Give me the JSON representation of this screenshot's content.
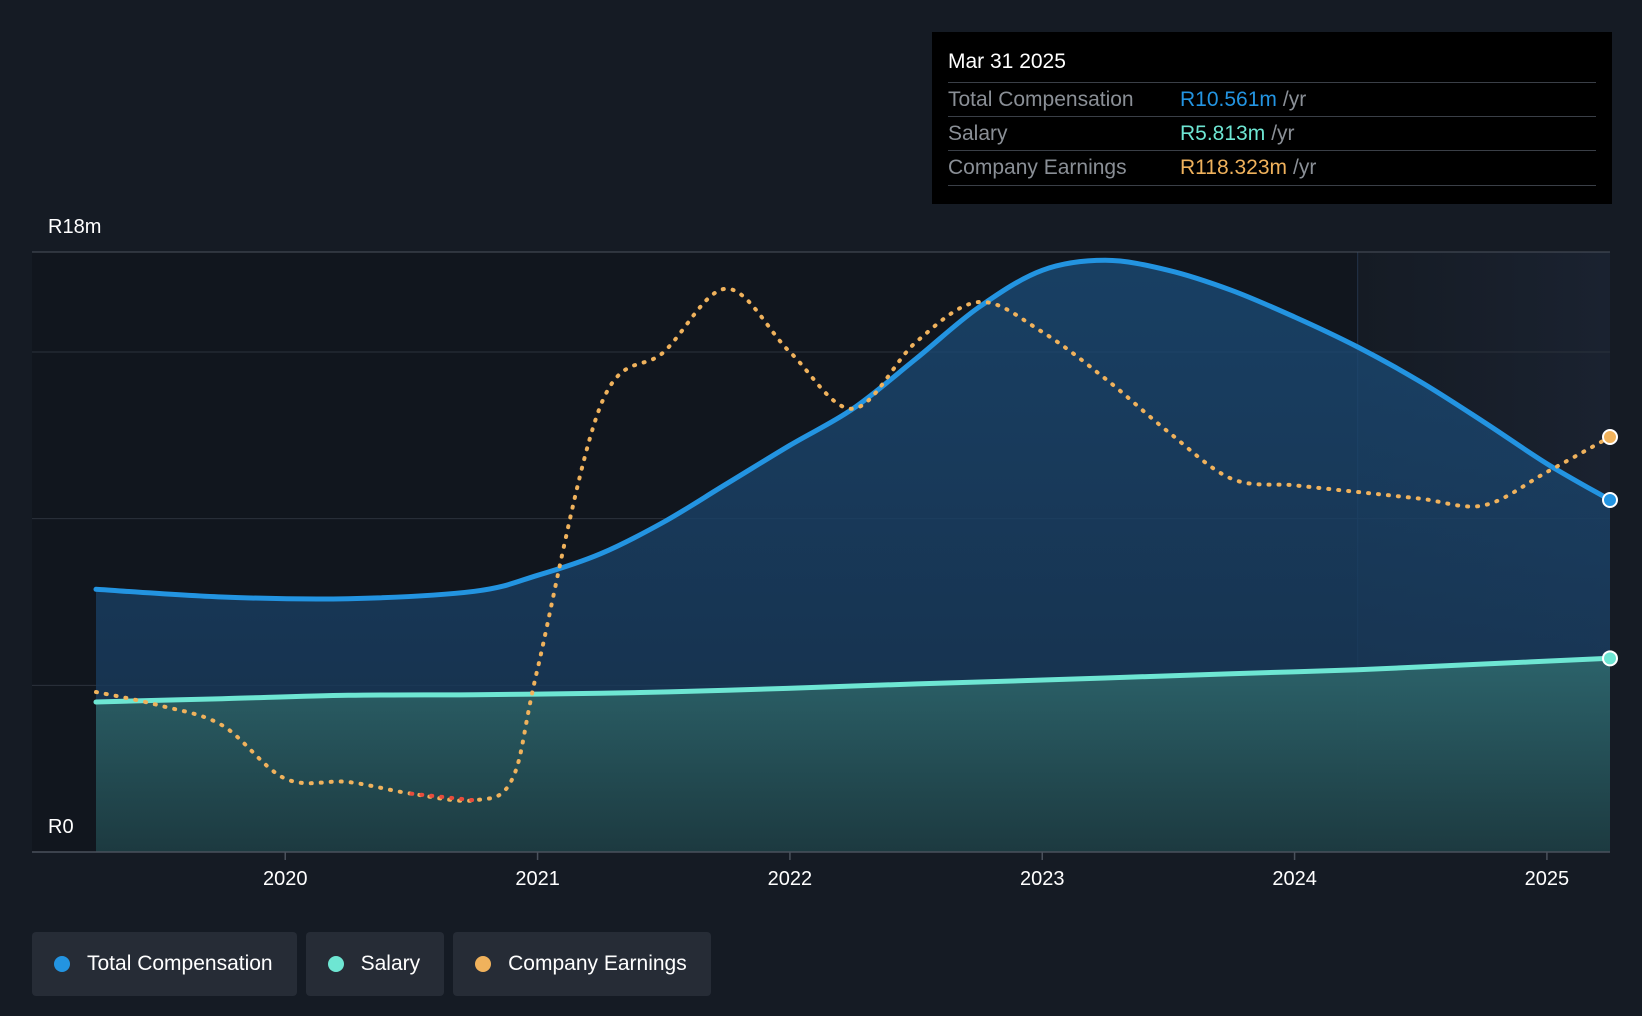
{
  "tooltip": {
    "date": "Mar 31 2025",
    "rows": [
      {
        "label": "Total Compensation",
        "value": "R10.561m",
        "unit": "/yr",
        "color": "#2394e1"
      },
      {
        "label": "Salary",
        "value": "R5.813m",
        "unit": "/yr",
        "color": "#6ee6d3"
      },
      {
        "label": "Company Earnings",
        "value": "R118.323m",
        "unit": "/yr",
        "color": "#f0b25c"
      }
    ]
  },
  "legend": [
    {
      "label": "Total Compensation",
      "color": "#2394e1"
    },
    {
      "label": "Salary",
      "color": "#6ee6d3"
    },
    {
      "label": "Company Earnings",
      "color": "#f0b25c"
    }
  ],
  "chart_data": {
    "type": "area",
    "title": "",
    "xlabel": "",
    "ylabel": "",
    "y_top_label": "R18m",
    "y_bottom_label": "R0",
    "ylim": [
      0,
      18
    ],
    "xlim": [
      2019.25,
      2025.25
    ],
    "x_ticks": [
      2020,
      2021,
      2022,
      2023,
      2024,
      2025
    ],
    "x_tick_labels": [
      "2020",
      "2021",
      "2022",
      "2023",
      "2024",
      "2025"
    ],
    "forecast_start": 2024.25,
    "series": [
      {
        "name": "Total Compensation",
        "unit": "R m",
        "color": "#2394e1",
        "style": "solid-area",
        "x": [
          2019.25,
          2019.75,
          2020.25,
          2020.75,
          2021.0,
          2021.25,
          2021.5,
          2021.75,
          2022.0,
          2022.25,
          2022.5,
          2022.75,
          2023.0,
          2023.25,
          2023.5,
          2023.75,
          2024.0,
          2024.25,
          2024.5,
          2024.75,
          2025.0,
          2025.25
        ],
        "values": [
          7.88,
          7.65,
          7.6,
          7.82,
          8.3,
          8.95,
          9.9,
          11.05,
          12.2,
          13.3,
          14.8,
          16.35,
          17.45,
          17.75,
          17.45,
          16.85,
          16.05,
          15.15,
          14.1,
          12.9,
          11.65,
          10.56
        ]
      },
      {
        "name": "Salary",
        "unit": "R m",
        "color": "#6ee6d3",
        "style": "solid-area",
        "x": [
          2019.25,
          2019.75,
          2020.25,
          2020.75,
          2021.25,
          2021.75,
          2022.25,
          2022.75,
          2023.25,
          2023.75,
          2024.25,
          2024.75,
          2025.25
        ],
        "values": [
          4.5,
          4.6,
          4.7,
          4.72,
          4.76,
          4.85,
          4.98,
          5.1,
          5.22,
          5.35,
          5.47,
          5.64,
          5.81
        ]
      },
      {
        "name": "Company Earnings",
        "unit": "scaled",
        "color": "#f0b25c",
        "style": "dotted",
        "negative_color": "#e74c3c",
        "x": [
          2019.25,
          2019.5,
          2019.75,
          2020.0,
          2020.25,
          2020.5,
          2020.75,
          2020.9,
          2021.0,
          2021.25,
          2021.5,
          2021.75,
          2022.0,
          2022.25,
          2022.5,
          2022.75,
          2023.0,
          2023.25,
          2023.5,
          2023.75,
          2024.0,
          2024.25,
          2024.5,
          2024.75,
          2025.0,
          2025.25
        ],
        "values": [
          4.8,
          4.4,
          3.8,
          2.2,
          2.1,
          1.75,
          1.55,
          2.2,
          5.5,
          13.4,
          15.0,
          16.9,
          15.0,
          13.3,
          15.3,
          16.5,
          15.6,
          14.2,
          12.6,
          11.2,
          11.0,
          10.8,
          10.6,
          10.4,
          11.4,
          12.45
        ],
        "negative_range": [
          2020.6,
          2020.78
        ]
      }
    ],
    "end_values": {
      "total_compensation": 10.561,
      "salary": 5.813,
      "company_earnings": 118.323
    }
  }
}
